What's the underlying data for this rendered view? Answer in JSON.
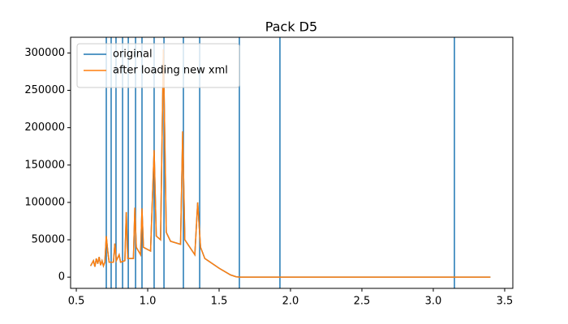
{
  "chart_data": {
    "type": "line",
    "title": "Pack D5",
    "x": [
      0.6,
      0.62,
      0.63,
      0.64,
      0.65,
      0.66,
      0.67,
      0.68,
      0.69,
      0.7,
      0.71,
      0.72,
      0.73,
      0.76,
      0.77,
      0.78,
      0.8,
      0.81,
      0.84,
      0.85,
      0.86,
      0.9,
      0.91,
      0.92,
      0.95,
      0.96,
      0.97,
      1.02,
      1.045,
      1.06,
      1.09,
      1.11,
      1.13,
      1.16,
      1.23,
      1.245,
      1.26,
      1.33,
      1.35,
      1.37,
      1.4,
      1.5,
      1.58,
      1.62,
      1.65,
      2.0,
      3.4
    ],
    "series": [
      {
        "name": "original",
        "color": "#1f77b4",
        "values": [
          15000,
          22000,
          14000,
          25000,
          18000,
          27000,
          16000,
          22000,
          15000,
          20000,
          55000,
          35000,
          20000,
          20000,
          45000,
          22000,
          30000,
          20000,
          22000,
          87000,
          25000,
          25000,
          93000,
          40000,
          30000,
          92000,
          40000,
          35000,
          170000,
          55000,
          50000,
          305000,
          60000,
          48000,
          44000,
          195000,
          50000,
          30000,
          100000,
          40000,
          25000,
          12000,
          3000,
          500,
          0,
          0,
          0
        ]
      },
      {
        "name": "after loading new xml",
        "color": "#ff7f0e",
        "values": [
          15000,
          22000,
          14000,
          25000,
          18000,
          27000,
          16000,
          22000,
          15000,
          20000,
          55000,
          35000,
          20000,
          20000,
          45000,
          22000,
          30000,
          20000,
          22000,
          87000,
          25000,
          25000,
          93000,
          40000,
          30000,
          92000,
          40000,
          35000,
          170000,
          55000,
          50000,
          305000,
          60000,
          48000,
          44000,
          195000,
          50000,
          30000,
          100000,
          40000,
          25000,
          12000,
          3000,
          500,
          0,
          0,
          0
        ]
      }
    ],
    "vlines": [
      0.71,
      0.744,
      0.778,
      0.824,
      0.864,
      0.915,
      0.96,
      1.045,
      1.114,
      1.25,
      1.364,
      1.642,
      1.926,
      3.148
    ],
    "vline_color": "#1f77b4",
    "xlim": [
      0.46,
      3.557
    ],
    "xticks": [
      0.5,
      {
        "value": 1,
        "label": "1.0"
      },
      1.5,
      {
        "value": 2,
        "label": "2.0"
      },
      2.5,
      {
        "value": 3,
        "label": "3.0"
      },
      3.5
    ],
    "ylim": [
      -15000,
      321000
    ],
    "yticks": [
      0,
      50000,
      100000,
      150000,
      200000,
      250000,
      300000
    ],
    "legend": "upper left"
  }
}
